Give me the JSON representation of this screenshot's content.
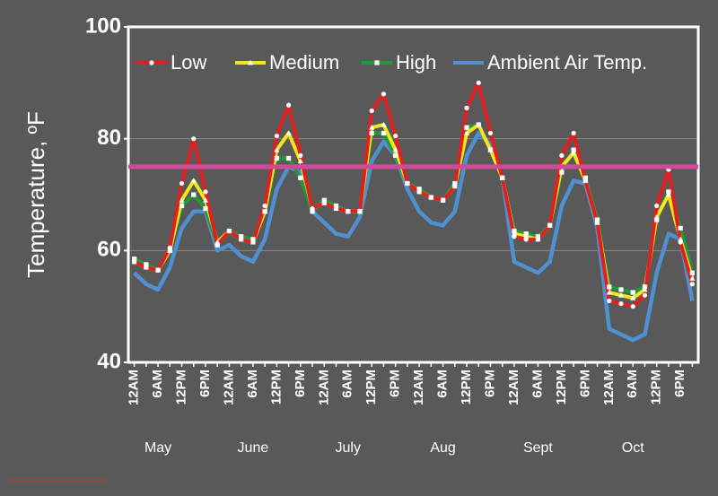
{
  "chart_data": {
    "type": "line",
    "ylabel": "Temperature, ºF",
    "categories": [
      "12AM",
      null,
      "6AM",
      null,
      "12PM",
      null,
      "6PM",
      null,
      "12AM",
      null,
      "6AM",
      null,
      "12PM",
      null,
      "6PM",
      null,
      "12AM",
      null,
      "6AM",
      null,
      "12PM",
      null,
      "6PM",
      null,
      "12AM",
      null,
      "6AM",
      null,
      "12PM",
      null,
      "6PM",
      null,
      "12AM",
      null,
      "6AM",
      null,
      "12PM",
      null,
      "6PM",
      null,
      "12AM",
      null,
      "6AM",
      null,
      "12PM",
      null,
      "6PM",
      null
    ],
    "group_labels": [
      "May",
      "June",
      "July",
      "Aug",
      "Sept",
      "Oct"
    ],
    "ylim": [
      40,
      100
    ],
    "yticks": [
      40,
      60,
      80,
      100
    ],
    "grid": true,
    "legend": "top",
    "reference_line": {
      "value": 75,
      "color": "#d04a9a"
    },
    "series": [
      {
        "name": "Low",
        "color": "#e0201e",
        "marker": "circle",
        "values": [
          58,
          57,
          56.5,
          60.5,
          72,
          80,
          70.5,
          61,
          63.5,
          62,
          61.5,
          68,
          80.5,
          86,
          77,
          67.5,
          68.5,
          67.5,
          67,
          67,
          85,
          88,
          80.5,
          72,
          70.5,
          69.5,
          69,
          71.5,
          85.5,
          90,
          81,
          73,
          62.5,
          62,
          62,
          64.5,
          77,
          81,
          72.5,
          65,
          51,
          50.5,
          50,
          52,
          68,
          74.5,
          61.5,
          54
        ]
      },
      {
        "name": "Medium",
        "color": "#f2e61c",
        "marker": "triangle",
        "values": [
          58,
          57,
          56.5,
          60,
          69,
          72.5,
          69,
          61.5,
          63.5,
          62,
          61.5,
          67,
          78,
          81,
          76,
          67.5,
          68.5,
          67.5,
          67,
          67,
          82,
          82.5,
          78,
          72,
          70.5,
          69.5,
          69,
          71.5,
          81,
          82.5,
          78,
          73,
          63,
          62.5,
          62,
          64.5,
          75,
          77.5,
          72.5,
          65,
          52.5,
          52,
          51.5,
          53,
          66,
          70,
          62,
          55
        ]
      },
      {
        "name": "High",
        "color": "#1f9a3a",
        "marker": "square",
        "values": [
          58.5,
          57.5,
          56.5,
          60,
          68,
          70,
          67.5,
          61,
          63.5,
          62.5,
          62,
          67,
          76.5,
          76.5,
          73,
          67,
          69,
          68,
          67,
          67,
          81,
          81,
          77,
          72,
          71,
          69.5,
          69,
          72,
          82,
          82.5,
          78,
          73,
          63.5,
          63,
          62.5,
          64.5,
          74,
          78,
          73,
          65.5,
          53.5,
          53,
          52.5,
          53.5,
          65.5,
          70.5,
          64,
          56
        ]
      },
      {
        "name": "Ambient Air Temp.",
        "color": "#4f90d0",
        "marker": null,
        "values": [
          56,
          54,
          53,
          57,
          64,
          67,
          67,
          60,
          61,
          59,
          58,
          62,
          71,
          75,
          74,
          67,
          65,
          63,
          62.5,
          66,
          76,
          79.5,
          77,
          71,
          67,
          65,
          64.5,
          67,
          77,
          81,
          79,
          73,
          58,
          57,
          56,
          58,
          68,
          72.5,
          72,
          64,
          46,
          45,
          44,
          45,
          56,
          63,
          62,
          51
        ]
      }
    ]
  }
}
